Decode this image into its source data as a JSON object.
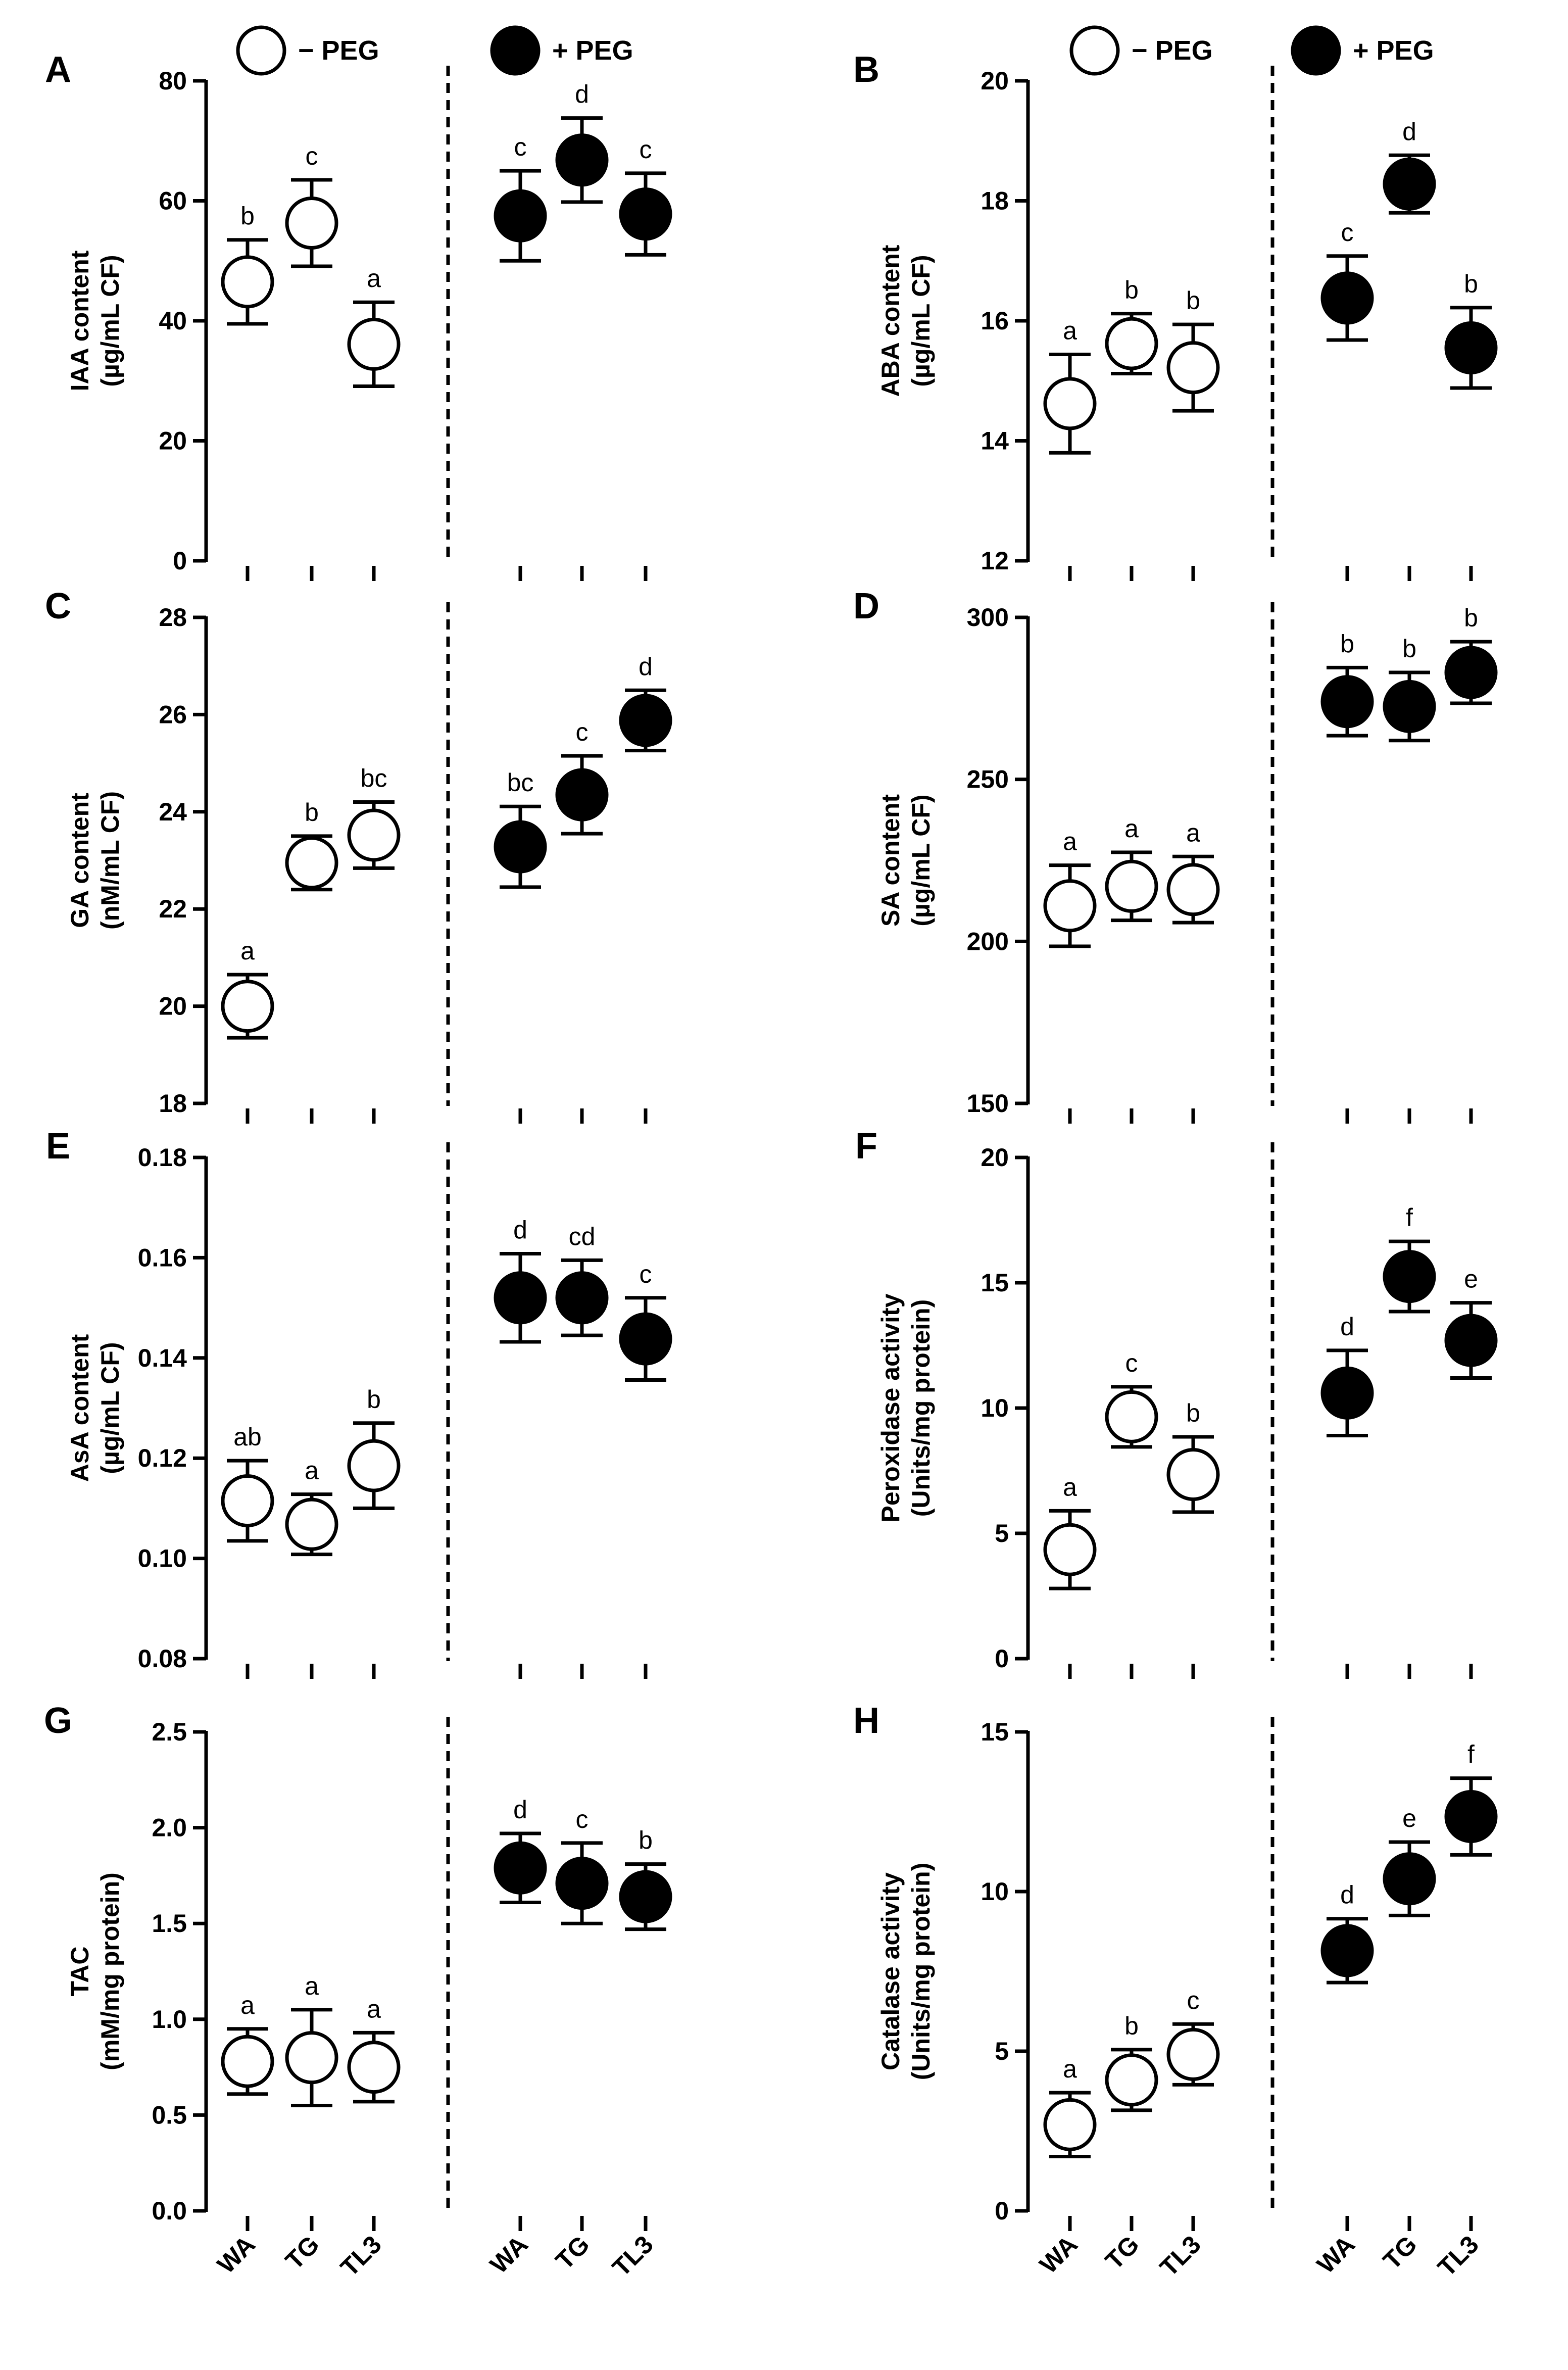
{
  "legend": {
    "items": [
      {
        "label": "− PEG",
        "marker": "open"
      },
      {
        "label": "+ PEG",
        "marker": "filled"
      }
    ]
  },
  "colors": {
    "ink": "#000000",
    "background": "#ffffff"
  },
  "chart_data": [
    {
      "panel": "A",
      "type": "scatter",
      "ylabel": [
        "IAA content",
        "(µg/mL CF)"
      ],
      "ylim": [
        0,
        80
      ],
      "yticks": [
        0,
        20,
        40,
        60,
        80
      ],
      "ytick_labels": [
        "0",
        "20",
        "40",
        "60",
        "80"
      ],
      "categories": [
        "WA",
        "TG",
        "TL3"
      ],
      "show_categories": false,
      "series": [
        {
          "name": "− PEG",
          "values": [
            46.5,
            56.3,
            36.1
          ],
          "errors": [
            7.0,
            7.2,
            7.0
          ],
          "labels": [
            "b",
            "c",
            "a"
          ]
        },
        {
          "name": "+ PEG",
          "values": [
            57.5,
            66.8,
            57.8
          ],
          "errors": [
            7.5,
            7.0,
            6.8
          ],
          "labels": [
            "c",
            "d",
            "c"
          ]
        }
      ]
    },
    {
      "panel": "B",
      "type": "scatter",
      "ylabel": [
        "ABA content",
        "(µg/mL CF)"
      ],
      "ylim": [
        12,
        20
      ],
      "yticks": [
        12,
        14,
        16,
        18,
        20
      ],
      "ytick_labels": [
        "12",
        "14",
        "16",
        "18",
        "20"
      ],
      "categories": [
        "WA",
        "TG",
        "TL3"
      ],
      "show_categories": false,
      "series": [
        {
          "name": "− PEG",
          "values": [
            14.62,
            15.62,
            15.22
          ],
          "errors": [
            0.82,
            0.5,
            0.72
          ],
          "labels": [
            "a",
            "b",
            "b"
          ]
        },
        {
          "name": "+ PEG",
          "values": [
            16.38,
            18.28,
            15.55
          ],
          "errors": [
            0.7,
            0.48,
            0.67
          ],
          "labels": [
            "c",
            "d",
            "b"
          ]
        }
      ]
    },
    {
      "panel": "C",
      "type": "scatter",
      "ylabel": [
        "GA content",
        "(nM/mL CF)"
      ],
      "ylim": [
        18,
        28
      ],
      "yticks": [
        18,
        20,
        22,
        24,
        26,
        28
      ],
      "ytick_labels": [
        "18",
        "20",
        "22",
        "24",
        "26",
        "28"
      ],
      "categories": [
        "WA",
        "TG",
        "TL3"
      ],
      "show_categories": false,
      "series": [
        {
          "name": "− PEG",
          "values": [
            20.0,
            22.95,
            23.52
          ],
          "errors": [
            0.65,
            0.55,
            0.68
          ],
          "labels": [
            "a",
            "b",
            "bc"
          ]
        },
        {
          "name": "+ PEG",
          "values": [
            23.28,
            24.35,
            25.88
          ],
          "errors": [
            0.83,
            0.8,
            0.62
          ],
          "labels": [
            "bc",
            "c",
            "d"
          ]
        }
      ]
    },
    {
      "panel": "D",
      "type": "scatter",
      "ylabel": [
        "SA content",
        "(µg/mL CF)"
      ],
      "ylim": [
        150,
        300
      ],
      "yticks": [
        150,
        200,
        250,
        300
      ],
      "ytick_labels": [
        "150",
        "200",
        "250",
        "300"
      ],
      "categories": [
        "WA",
        "TG",
        "TL3"
      ],
      "show_categories": false,
      "series": [
        {
          "name": "− PEG",
          "values": [
            211,
            217,
            216
          ],
          "errors": [
            12.5,
            10.5,
            10.2
          ],
          "labels": [
            "a",
            "a",
            "a"
          ]
        },
        {
          "name": "+ PEG",
          "values": [
            274,
            272.5,
            283
          ],
          "errors": [
            10.5,
            10.5,
            9.5
          ],
          "labels": [
            "b",
            "b",
            "b"
          ]
        }
      ]
    },
    {
      "panel": "E",
      "type": "scatter",
      "ylabel": [
        "AsA content",
        "(µg/mL CF)"
      ],
      "ylim": [
        0.08,
        0.18
      ],
      "yticks": [
        0.08,
        0.1,
        0.12,
        0.14,
        0.16,
        0.18
      ],
      "ytick_labels": [
        "0.08",
        "0.10",
        "0.12",
        "0.14",
        "0.16",
        "0.18"
      ],
      "categories": [
        "WA",
        "TG",
        "TL3"
      ],
      "show_categories": false,
      "series": [
        {
          "name": "− PEG",
          "values": [
            0.1115,
            0.1068,
            0.1185
          ],
          "errors": [
            0.008,
            0.006,
            0.0085
          ],
          "labels": [
            "ab",
            "a",
            "b"
          ]
        },
        {
          "name": "+ PEG",
          "values": [
            0.152,
            0.152,
            0.1438
          ],
          "errors": [
            0.0088,
            0.0075,
            0.0082
          ],
          "labels": [
            "d",
            "cd",
            "c"
          ]
        }
      ]
    },
    {
      "panel": "F",
      "type": "scatter",
      "ylabel": [
        "Peroxidase activity",
        "(Units/mg protein)"
      ],
      "ylim": [
        0,
        20
      ],
      "yticks": [
        0,
        5,
        10,
        15,
        20
      ],
      "ytick_labels": [
        "0",
        "5",
        "10",
        "15",
        "20"
      ],
      "categories": [
        "WA",
        "TG",
        "TL3"
      ],
      "show_categories": false,
      "series": [
        {
          "name": "− PEG",
          "values": [
            4.35,
            9.65,
            7.35
          ],
          "errors": [
            1.55,
            1.2,
            1.5
          ],
          "labels": [
            "a",
            "c",
            "b"
          ]
        },
        {
          "name": "+ PEG",
          "values": [
            10.6,
            15.25,
            12.7
          ],
          "errors": [
            1.7,
            1.4,
            1.5
          ],
          "labels": [
            "d",
            "f",
            "e"
          ]
        }
      ]
    },
    {
      "panel": "G",
      "type": "scatter",
      "ylabel": [
        "TAC",
        "(mM/mg protein)"
      ],
      "ylim": [
        0,
        2.5
      ],
      "yticks": [
        0,
        0.5,
        1.0,
        1.5,
        2.0,
        2.5
      ],
      "ytick_labels": [
        "0.0",
        "0.5",
        "1.0",
        "1.5",
        "2.0",
        "2.5"
      ],
      "categories": [
        "WA",
        "TG",
        "TL3"
      ],
      "show_categories": true,
      "series": [
        {
          "name": "− PEG",
          "values": [
            0.78,
            0.8,
            0.75
          ],
          "errors": [
            0.17,
            0.25,
            0.18
          ],
          "labels": [
            "a",
            "a",
            "a"
          ]
        },
        {
          "name": "+ PEG",
          "values": [
            1.79,
            1.71,
            1.64
          ],
          "errors": [
            0.18,
            0.21,
            0.17
          ],
          "labels": [
            "d",
            "c",
            "b"
          ]
        }
      ]
    },
    {
      "panel": "H",
      "type": "scatter",
      "ylabel": [
        "Catalase activity",
        "(Units/mg protein)"
      ],
      "ylim": [
        0,
        15
      ],
      "yticks": [
        0,
        5,
        10,
        15
      ],
      "ytick_labels": [
        "0",
        "5",
        "10",
        "15"
      ],
      "categories": [
        "WA",
        "TG",
        "TL3"
      ],
      "show_categories": true,
      "series": [
        {
          "name": "− PEG",
          "values": [
            2.7,
            4.1,
            4.9
          ],
          "errors": [
            1.0,
            0.95,
            0.95
          ],
          "labels": [
            "a",
            "b",
            "c"
          ]
        },
        {
          "name": "+ PEG",
          "values": [
            8.15,
            10.4,
            12.35
          ],
          "errors": [
            1.0,
            1.15,
            1.2
          ],
          "labels": [
            "d",
            "e",
            "f"
          ]
        }
      ]
    }
  ]
}
